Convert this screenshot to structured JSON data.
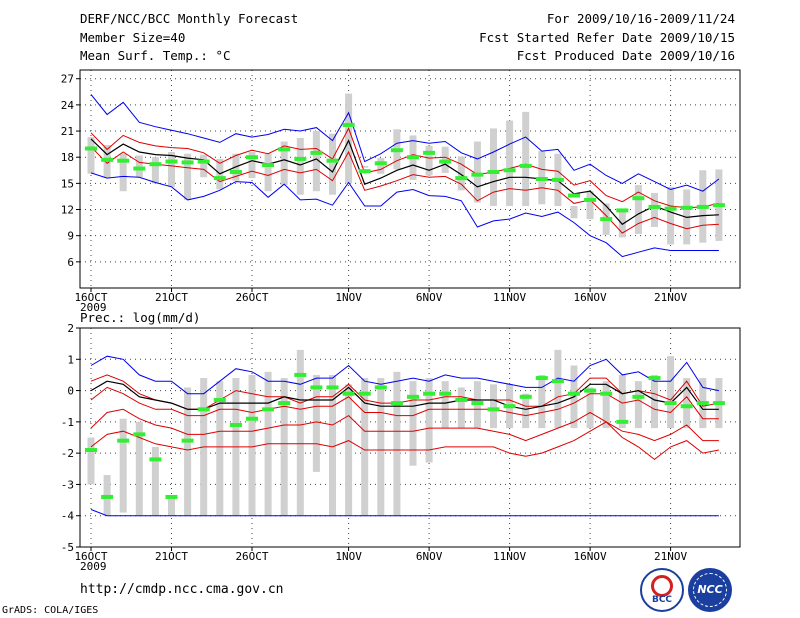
{
  "header": {
    "title": "DERF/NCC/BCC Monthly Forecast",
    "member_size": "Member Size=40",
    "variable": "Mean Surf. Temp.: °C",
    "forecast_period": "For 2009/10/16-2009/11/24",
    "start_date": "Fcst Started Refer Date 2009/10/15",
    "produced_date": "Fcst Produced Date 2009/10/16"
  },
  "footer": {
    "url": "http://cmdp.ncc.cma.gov.cn",
    "grads_credit": "GrADS: COLA/IGES",
    "logo_left_text": "BCC",
    "logo_right_text": "NCC"
  },
  "colors": {
    "envelope": "#0000ee",
    "spread": "#dd0000",
    "mean": "#000000",
    "observed": "#33ee33",
    "bars": "#d0d0d0",
    "grid": "#444444"
  },
  "chart_data": [
    {
      "type": "line",
      "title": "Mean Surf. Temp.: °C",
      "xlabel": "",
      "ylabel": "",
      "x_tick_labels": [
        "16OCT\n2009",
        "21OCT",
        "26OCT",
        "1NOV",
        "6NOV",
        "11NOV",
        "16NOV",
        "21NOV"
      ],
      "x_tick_days": [
        0,
        5,
        10,
        16,
        21,
        26,
        31,
        36
      ],
      "ylim": [
        3,
        28
      ],
      "y_ticks": [
        6,
        9,
        12,
        15,
        18,
        21,
        24,
        27
      ],
      "grid": true,
      "x": [
        0,
        1,
        2,
        3,
        4,
        5,
        6,
        7,
        8,
        9,
        10,
        11,
        12,
        13,
        14,
        15,
        16,
        17,
        18,
        19,
        20,
        21,
        22,
        23,
        24,
        25,
        26,
        27,
        28,
        29,
        30,
        31,
        32,
        33,
        34,
        35,
        36,
        37,
        38,
        39
      ],
      "series": [
        {
          "name": "max",
          "values": [
            25.2,
            22.9,
            24.3,
            22.0,
            21.5,
            21.1,
            20.7,
            20.2,
            19.7,
            20.7,
            20.3,
            20.6,
            21.2,
            21.0,
            21.4,
            19.9,
            23.1,
            17.5,
            18.4,
            19.6,
            19.9,
            19.6,
            19.8,
            18.5,
            17.8,
            18.6,
            19.5,
            20.3,
            18.7,
            18.9,
            16.5,
            17.2,
            15.9,
            15.0,
            16.1,
            15.2,
            14.3,
            14.8,
            14.1,
            15.5
          ]
        },
        {
          "name": "upper",
          "values": [
            20.8,
            18.9,
            20.5,
            19.7,
            19.3,
            19.1,
            19.0,
            18.5,
            17.3,
            18.2,
            18.8,
            18.4,
            19.3,
            18.9,
            19.0,
            17.8,
            21.3,
            16.2,
            16.6,
            17.6,
            18.3,
            17.9,
            18.0,
            17.2,
            16.0,
            16.3,
            16.7,
            17.2,
            16.6,
            16.4,
            14.8,
            15.3,
            13.6,
            12.9,
            14.0,
            13.0,
            12.4,
            12.2,
            12.3,
            12.7
          ]
        },
        {
          "name": "mean",
          "values": [
            20.1,
            18.3,
            19.5,
            18.6,
            18.3,
            18.2,
            17.9,
            17.7,
            16.1,
            16.9,
            17.6,
            17.2,
            17.7,
            17.1,
            17.8,
            16.3,
            19.9,
            14.9,
            15.6,
            16.5,
            17.1,
            16.5,
            17.2,
            16.0,
            14.6,
            15.2,
            15.7,
            15.7,
            15.5,
            15.3,
            13.8,
            14.1,
            12.4,
            10.3,
            11.5,
            12.4,
            11.7,
            11.1,
            11.3,
            11.4
          ]
        },
        {
          "name": "lower",
          "values": [
            19.2,
            17.3,
            18.6,
            17.4,
            17.2,
            17.0,
            16.8,
            16.6,
            15.2,
            15.8,
            16.4,
            15.9,
            16.6,
            16.2,
            16.6,
            15.3,
            18.6,
            14.2,
            14.7,
            15.3,
            16.0,
            15.7,
            15.8,
            14.9,
            13.0,
            14.0,
            14.4,
            14.2,
            14.5,
            14.2,
            12.7,
            13.1,
            11.3,
            9.3,
            10.4,
            11.1,
            10.4,
            9.8,
            10.2,
            10.3
          ]
        },
        {
          "name": "min",
          "values": [
            16.2,
            15.6,
            15.8,
            15.7,
            15.1,
            14.6,
            13.1,
            13.5,
            14.2,
            15.2,
            15.1,
            13.4,
            14.9,
            13.1,
            13.2,
            12.5,
            15.1,
            12.4,
            12.4,
            14.0,
            14.3,
            13.6,
            13.5,
            13.0,
            10.0,
            10.7,
            10.9,
            11.6,
            11.2,
            11.7,
            10.5,
            9.0,
            8.2,
            6.6,
            7.1,
            7.6,
            7.3,
            7.3,
            7.3,
            7.3
          ]
        },
        {
          "name": "observed",
          "values": [
            19.0,
            17.7,
            17.6,
            16.7,
            17.2,
            17.5,
            17.4,
            17.5,
            15.6,
            16.3,
            18.0,
            17.1,
            18.9,
            17.8,
            18.5,
            17.6,
            21.7,
            16.4,
            17.3,
            18.8,
            18.0,
            18.5,
            17.5,
            15.6,
            16.0,
            16.3,
            16.5,
            17.0,
            15.5,
            15.4,
            13.6,
            13.1,
            10.9,
            11.9,
            13.3,
            12.3,
            12.1,
            12.2,
            12.3,
            12.5
          ]
        }
      ],
      "bars": {
        "name": "ensemble range",
        "lows": [
          16.1,
          15.6,
          14.1,
          15.7,
          15.0,
          14.6,
          13.1,
          15.7,
          14.3,
          15.3,
          15.6,
          14.1,
          14.8,
          13.7,
          14.1,
          13.7,
          15.0,
          16.8,
          16.1,
          16.6,
          15.4,
          15.9,
          16.2,
          14.2,
          12.8,
          12.4,
          12.4,
          12.4,
          12.6,
          12.4,
          11.0,
          10.9,
          9.1,
          8.8,
          9.2,
          10.0,
          8.0,
          8.0,
          8.2,
          8.4
        ],
        "highs": [
          20.3,
          19.4,
          18.4,
          18.2,
          18.0,
          18.6,
          18.4,
          18.3,
          17.8,
          18.4,
          18.6,
          18.4,
          19.8,
          20.2,
          21.0,
          20.7,
          25.3,
          17.0,
          17.9,
          21.2,
          20.5,
          19.3,
          19.2,
          18.1,
          19.8,
          21.3,
          22.2,
          23.2,
          18.7,
          18.4,
          12.4,
          14.1,
          12.7,
          12.0,
          14.8,
          13.9,
          14.6,
          14.3,
          16.5,
          16.6
        ]
      }
    },
    {
      "type": "line",
      "title": "Prec.: log(mm/d)",
      "xlabel": "",
      "ylabel": "",
      "x_tick_labels": [
        "16OCT\n2009",
        "21OCT",
        "26OCT",
        "1NOV",
        "6NOV",
        "11NOV",
        "16NOV",
        "21NOV"
      ],
      "x_tick_days": [
        0,
        5,
        10,
        16,
        21,
        26,
        31,
        36
      ],
      "ylim": [
        -5,
        2
      ],
      "y_ticks": [
        -5,
        -4,
        -3,
        -2,
        -1,
        0,
        1,
        2
      ],
      "grid": true,
      "x": [
        0,
        1,
        2,
        3,
        4,
        5,
        6,
        7,
        8,
        9,
        10,
        11,
        12,
        13,
        14,
        15,
        16,
        17,
        18,
        19,
        20,
        21,
        22,
        23,
        24,
        25,
        26,
        27,
        28,
        29,
        30,
        31,
        32,
        33,
        34,
        35,
        36,
        37,
        38,
        39
      ],
      "series": [
        {
          "name": "max",
          "values": [
            0.8,
            1.1,
            1.0,
            0.5,
            0.3,
            0.3,
            -0.1,
            -0.1,
            0.3,
            0.7,
            0.6,
            0.3,
            0.3,
            0.2,
            0.4,
            0.4,
            0.8,
            0.3,
            0.2,
            0.3,
            0.4,
            0.3,
            0.5,
            0.4,
            0.4,
            0.3,
            0.2,
            0.1,
            0.1,
            0.4,
            0.3,
            0.8,
            1.0,
            0.5,
            0.6,
            0.3,
            0.3,
            0.9,
            0.1,
            -0.0
          ]
        },
        {
          "name": "upper",
          "values": [
            0.3,
            0.5,
            0.3,
            -0.1,
            -0.3,
            -0.4,
            -0.6,
            -0.6,
            -0.3,
            0.0,
            -0.1,
            -0.2,
            -0.2,
            -0.4,
            -0.2,
            -0.2,
            0.2,
            -0.3,
            -0.4,
            -0.4,
            -0.3,
            -0.3,
            -0.2,
            -0.2,
            -0.3,
            -0.3,
            -0.3,
            -0.5,
            -0.5,
            -0.2,
            -0.1,
            0.4,
            0.4,
            -0.1,
            0.0,
            -0.1,
            -0.3,
            0.3,
            -0.5,
            -0.4
          ]
        },
        {
          "name": "mean",
          "values": [
            0.0,
            0.3,
            0.2,
            -0.2,
            -0.3,
            -0.4,
            -0.6,
            -0.6,
            -0.4,
            -0.4,
            -0.4,
            -0.4,
            -0.2,
            -0.3,
            -0.3,
            -0.3,
            0.1,
            -0.4,
            -0.5,
            -0.5,
            -0.5,
            -0.4,
            -0.4,
            -0.3,
            -0.3,
            -0.3,
            -0.5,
            -0.6,
            -0.5,
            -0.4,
            -0.2,
            0.2,
            0.2,
            -0.1,
            -0.0,
            -0.3,
            -0.4,
            0.1,
            -0.6,
            -0.6
          ]
        },
        {
          "name": "lower",
          "values": [
            -0.3,
            0.1,
            -0.1,
            -0.4,
            -0.6,
            -0.6,
            -0.8,
            -0.8,
            -0.6,
            -0.6,
            -0.7,
            -0.6,
            -0.5,
            -0.6,
            -0.5,
            -0.5,
            -0.2,
            -0.7,
            -0.7,
            -0.8,
            -0.8,
            -0.6,
            -0.6,
            -0.6,
            -0.6,
            -0.6,
            -0.7,
            -0.8,
            -0.7,
            -0.6,
            -0.4,
            -0.1,
            -0.1,
            -0.4,
            -0.3,
            -0.6,
            -0.7,
            -0.2,
            -0.9,
            -0.9
          ]
        },
        {
          "name": "lower2",
          "values": [
            -1.2,
            -0.7,
            -0.6,
            -0.9,
            -1.1,
            -1.2,
            -1.4,
            -1.4,
            -1.3,
            -1.3,
            -1.3,
            -1.2,
            -1.1,
            -1.1,
            -1.0,
            -1.1,
            -0.8,
            -1.3,
            -1.3,
            -1.3,
            -1.3,
            -1.2,
            -1.2,
            -1.2,
            -1.2,
            -1.3,
            -1.4,
            -1.6,
            -1.4,
            -1.2,
            -1.0,
            -0.7,
            -1.0,
            -1.3,
            -1.4,
            -1.6,
            -1.4,
            -1.1,
            -1.6,
            -1.6
          ]
        },
        {
          "name": "lower3",
          "values": [
            -1.8,
            -1.4,
            -1.3,
            -1.5,
            -1.7,
            -1.8,
            -1.9,
            -1.8,
            -1.8,
            -1.8,
            -1.8,
            -1.7,
            -1.7,
            -1.7,
            -1.7,
            -1.8,
            -1.6,
            -1.9,
            -1.9,
            -1.9,
            -1.9,
            -1.9,
            -1.8,
            -1.8,
            -1.8,
            -1.8,
            -2.0,
            -2.1,
            -2.0,
            -1.8,
            -1.6,
            -1.3,
            -1.0,
            -1.5,
            -1.8,
            -2.2,
            -1.8,
            -1.6,
            -2.0,
            -1.9
          ]
        },
        {
          "name": "min",
          "values": [
            -3.8,
            -4.0,
            -4.0,
            -4.0,
            -4.0,
            -4.0,
            -4.0,
            -4.0,
            -4.0,
            -4.0,
            -4.0,
            -4.0,
            -4.0,
            -4.0,
            -4.0,
            -4.0,
            -4.0,
            -4.0,
            -4.0,
            -4.0,
            -4.0,
            -4.0,
            -4.0,
            -4.0,
            -4.0,
            -4.0,
            -4.0,
            -4.0,
            -4.0,
            -4.0,
            -4.0,
            -4.0,
            -4.0,
            -4.0,
            -4.0,
            -4.0,
            -4.0,
            -4.0,
            -4.0,
            -4.0
          ]
        },
        {
          "name": "observed",
          "values": [
            -1.9,
            -3.4,
            -1.6,
            -1.4,
            -2.2,
            -3.4,
            -1.6,
            -0.6,
            -0.3,
            -1.1,
            -0.9,
            -0.6,
            -0.4,
            0.5,
            0.1,
            0.1,
            -0.1,
            -0.1,
            0.1,
            -0.4,
            -0.2,
            -0.1,
            -0.1,
            -0.3,
            -0.4,
            -0.6,
            -0.5,
            -0.2,
            0.4,
            0.3,
            -0.1,
            0.0,
            -0.1,
            -1.0,
            -0.2,
            0.4,
            -0.4,
            -0.5,
            -0.4,
            -0.4
          ]
        }
      ],
      "bars": {
        "name": "ensemble range",
        "lows": [
          -3.0,
          -4.0,
          -3.9,
          -4.0,
          -4.0,
          -4.0,
          -4.0,
          -4.0,
          -4.0,
          -4.0,
          -4.0,
          -4.0,
          -4.0,
          -4.0,
          -2.6,
          -4.0,
          -4.0,
          -4.0,
          -4.0,
          -4.0,
          -2.4,
          -2.3,
          -1.2,
          -1.2,
          -1.2,
          -1.2,
          -1.2,
          -1.2,
          -1.2,
          -1.2,
          -1.2,
          -1.2,
          -1.2,
          -1.2,
          -1.2,
          -1.2,
          -1.2,
          -1.2,
          -1.2,
          -1.2
        ],
        "highs": [
          -1.5,
          -2.7,
          -0.9,
          -1.0,
          -1.8,
          -3.4,
          0.1,
          0.4,
          0.3,
          0.4,
          0.5,
          0.6,
          0.4,
          1.3,
          0.5,
          0.5,
          0.2,
          0.4,
          0.4,
          0.6,
          0.3,
          0.4,
          0.3,
          0.1,
          0.3,
          0.2,
          0.2,
          -0.1,
          0.5,
          1.3,
          0.8,
          0.1,
          0.3,
          0.5,
          0.3,
          0.5,
          1.1,
          0.4,
          0.4,
          0.4
        ]
      }
    }
  ]
}
